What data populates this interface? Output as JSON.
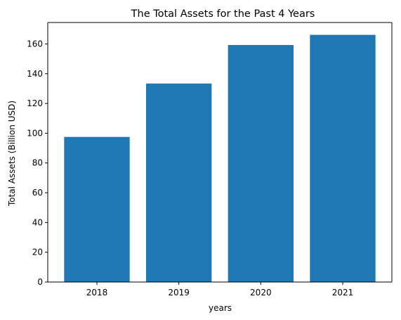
{
  "chart_data": {
    "type": "bar",
    "title": "The Total Assets for the Past 4 Years",
    "xlabel": "years",
    "ylabel": "Total Assets (Billion USD)",
    "categories": [
      "2018",
      "2019",
      "2020",
      "2021"
    ],
    "values": [
      97.5,
      133.4,
      159.3,
      166.1
    ],
    "ylim": [
      0,
      174.4
    ],
    "yticks": [
      0,
      20,
      40,
      60,
      80,
      100,
      120,
      140,
      160
    ],
    "grid": false,
    "colors": {
      "bar": "#1f77b4",
      "axis": "#000000",
      "background": "#ffffff"
    }
  }
}
